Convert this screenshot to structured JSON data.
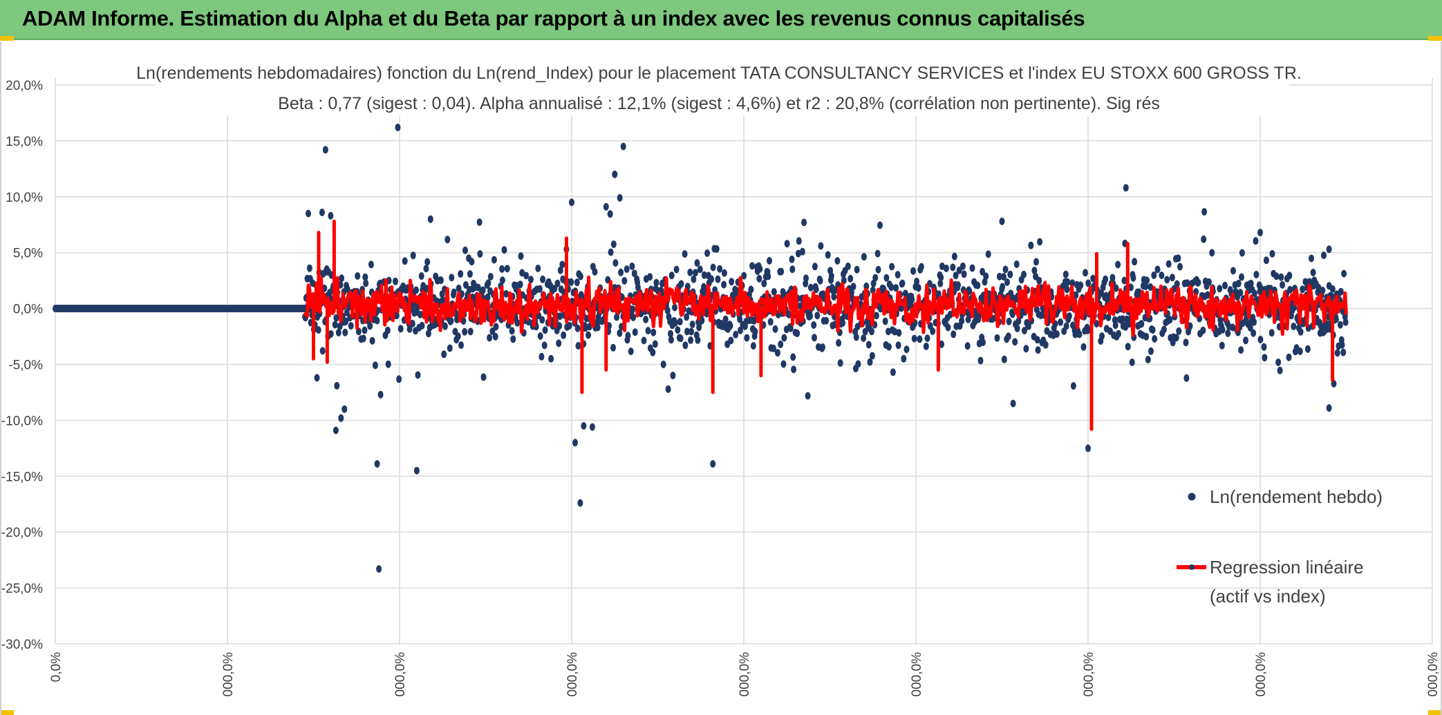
{
  "header": {
    "title": "ADAM Informe. Estimation du Alpha et du Beta par rapport à un index avec les revenus connus capitalisés"
  },
  "colors": {
    "banner": "#7dc87d",
    "points": "#203864",
    "regression": "#ff0000",
    "grid": "#d9d9d9"
  },
  "chart_data": {
    "type": "scatter",
    "title_line1": "Ln(rendements hebdomadaires) fonction du Ln(rend_Index) pour le placement TATA CONSULTANCY SERVICES et l'index EU STOXX 600 GROSS TR.",
    "title_line2": "Beta : 0,77 (sigest : 0,04). Alpha annualisé : 12,1% (sigest : 4,6%) et r2 : 20,8% (corrélation non pertinente). Sig rés",
    "y_ticks": [
      "20,0%",
      "15,0%",
      "10,0%",
      "5,0%",
      "0,0%",
      "-5,0%",
      "-10,0%",
      "-15,0%",
      "-20,0%",
      "-25,0%",
      "-30,0%"
    ],
    "ylim": [
      -30,
      20
    ],
    "x_ticks": [
      "0,0%",
      "000,0%",
      "000,0%",
      "000,0%",
      "000,0%",
      "000,0%",
      "000,0%",
      "000,0%",
      "000,0%"
    ],
    "xlim": [
      0,
      8
    ],
    "grid": true,
    "legend_position": "bottom-right",
    "series": [
      {
        "name": "Ln(rendement hebdo)",
        "kind": "points",
        "count": 2000,
        "zero_segment_end": 1.45,
        "extent_end": 7.5,
        "outliers": [
          [
            1.47,
            8.5
          ],
          [
            1.52,
            -6.2
          ],
          [
            1.55,
            8.6
          ],
          [
            1.57,
            14.2
          ],
          [
            1.6,
            8.3
          ],
          [
            1.63,
            -10.9
          ],
          [
            1.66,
            -9.8
          ],
          [
            1.68,
            -9.0
          ],
          [
            1.87,
            -13.9
          ],
          [
            1.88,
            -23.3
          ],
          [
            1.89,
            -7.7
          ],
          [
            1.99,
            16.2
          ],
          [
            2.1,
            -14.5
          ],
          [
            2.18,
            8.0
          ],
          [
            3.0,
            9.5
          ],
          [
            3.02,
            -12.0
          ],
          [
            3.05,
            -17.4
          ],
          [
            3.07,
            -10.5
          ],
          [
            3.12,
            -10.6
          ],
          [
            3.2,
            9.1
          ],
          [
            3.25,
            12.0
          ],
          [
            3.3,
            14.5
          ],
          [
            3.28,
            9.9
          ],
          [
            3.82,
            -13.9
          ],
          [
            4.35,
            7.7
          ],
          [
            5.5,
            7.8
          ],
          [
            6.0,
            -12.5
          ],
          [
            6.22,
            10.8
          ],
          [
            7.0,
            6.8
          ],
          [
            7.4,
            -8.9
          ],
          [
            7.4,
            5.3
          ]
        ]
      },
      {
        "name": "Regression linéaire",
        "name_line2": "(actif vs index)",
        "kind": "line",
        "spikes": [
          [
            1.5,
            -4.5
          ],
          [
            1.53,
            6.8
          ],
          [
            1.58,
            -4.8
          ],
          [
            1.62,
            7.8
          ],
          [
            2.97,
            6.3
          ],
          [
            3.06,
            -7.5
          ],
          [
            3.2,
            -5.5
          ],
          [
            3.82,
            -7.5
          ],
          [
            4.1,
            -6.0
          ],
          [
            5.13,
            -5.5
          ],
          [
            6.02,
            -10.8
          ],
          [
            6.05,
            4.9
          ],
          [
            6.23,
            5.8
          ],
          [
            7.42,
            -6.4
          ]
        ]
      }
    ]
  }
}
